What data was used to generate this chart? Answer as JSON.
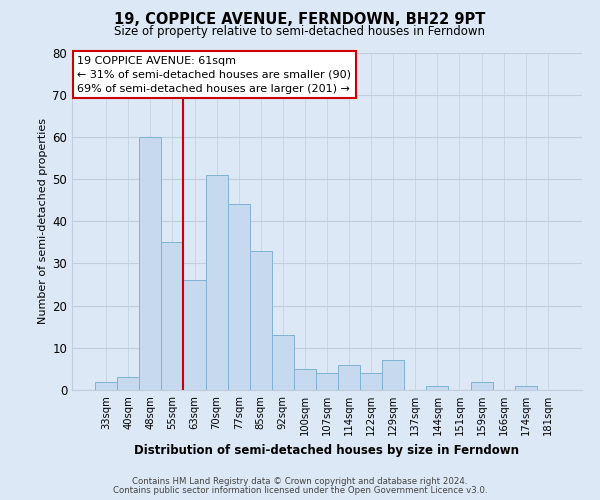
{
  "title_line1": "19, COPPICE AVENUE, FERNDOWN, BH22 9PT",
  "title_line2": "Size of property relative to semi-detached houses in Ferndown",
  "categories": [
    "33sqm",
    "40sqm",
    "48sqm",
    "55sqm",
    "63sqm",
    "70sqm",
    "77sqm",
    "85sqm",
    "92sqm",
    "100sqm",
    "107sqm",
    "114sqm",
    "122sqm",
    "129sqm",
    "137sqm",
    "144sqm",
    "151sqm",
    "159sqm",
    "166sqm",
    "174sqm",
    "181sqm"
  ],
  "values": [
    2,
    3,
    60,
    35,
    26,
    51,
    44,
    33,
    13,
    5,
    4,
    6,
    4,
    7,
    0,
    1,
    0,
    2,
    0,
    1,
    0
  ],
  "bar_color": "#c6d9ee",
  "bar_edge_color": "#7fb3d3",
  "vline_x_index": 4,
  "vline_color": "#cc0000",
  "ylabel": "Number of semi-detached properties",
  "xlabel": "Distribution of semi-detached houses by size in Ferndown",
  "ylim": [
    0,
    80
  ],
  "yticks": [
    0,
    10,
    20,
    30,
    40,
    50,
    60,
    70,
    80
  ],
  "annotation_title": "19 COPPICE AVENUE: 61sqm",
  "annotation_line2": "← 31% of semi-detached houses are smaller (90)",
  "annotation_line3": "69% of semi-detached houses are larger (201) →",
  "annotation_box_color": "#ffffff",
  "annotation_border_color": "#cc0000",
  "footer_line1": "Contains HM Land Registry data © Crown copyright and database right 2024.",
  "footer_line2": "Contains public sector information licensed under the Open Government Licence v3.0.",
  "bg_color": "#dce8f5",
  "plot_bg_color": "#dce8f5",
  "grid_color": "#c0cfe0"
}
